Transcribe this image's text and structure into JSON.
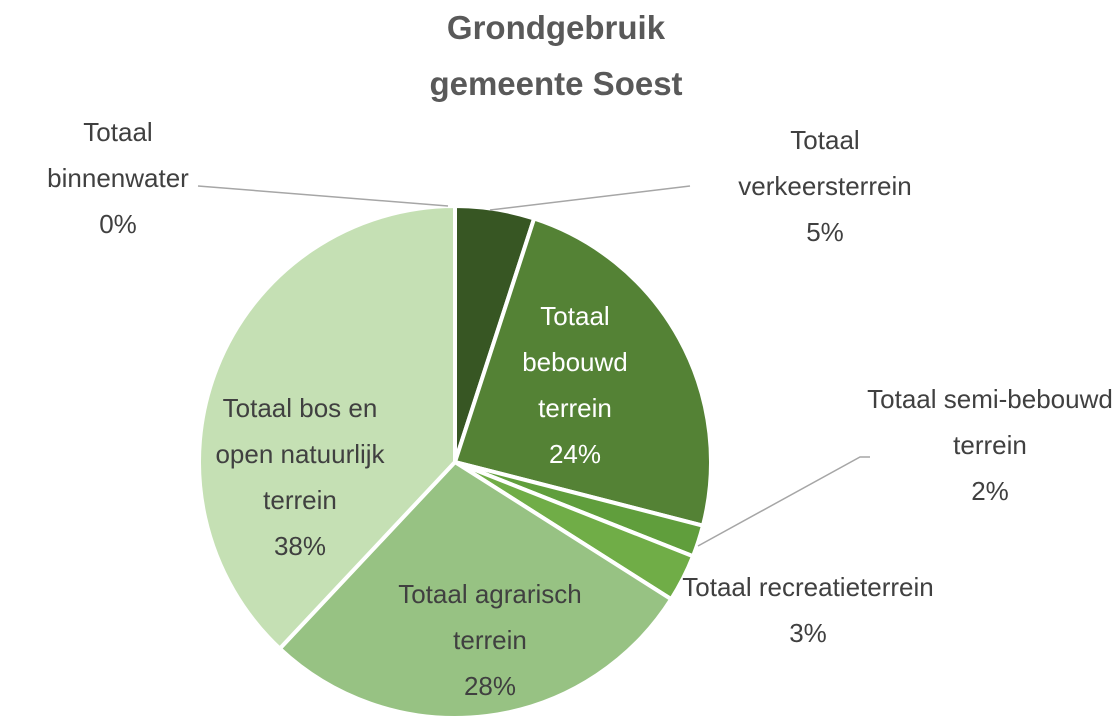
{
  "chart_data": {
    "type": "pie",
    "title": "Grondgebruik gemeente Soest",
    "categories": [
      "Totaal verkeersterrein",
      "Totaal bebouwd terrein",
      "Totaal semi-bebouwd terrein",
      "Totaal recreatieterrein",
      "Totaal agrarisch terrein",
      "Totaal bos en open natuurlijk terrein",
      "Totaal binnenwater"
    ],
    "values": [
      5,
      24,
      2,
      3,
      28,
      38,
      0
    ],
    "value_labels": [
      "5%",
      "24%",
      "2%",
      "3%",
      "28%",
      "38%",
      "0%"
    ],
    "colors": [
      "#375623",
      "#548235",
      "#609e3c",
      "#70ad47",
      "#97c283",
      "#c5e0b4",
      "#e2efda"
    ]
  }
}
